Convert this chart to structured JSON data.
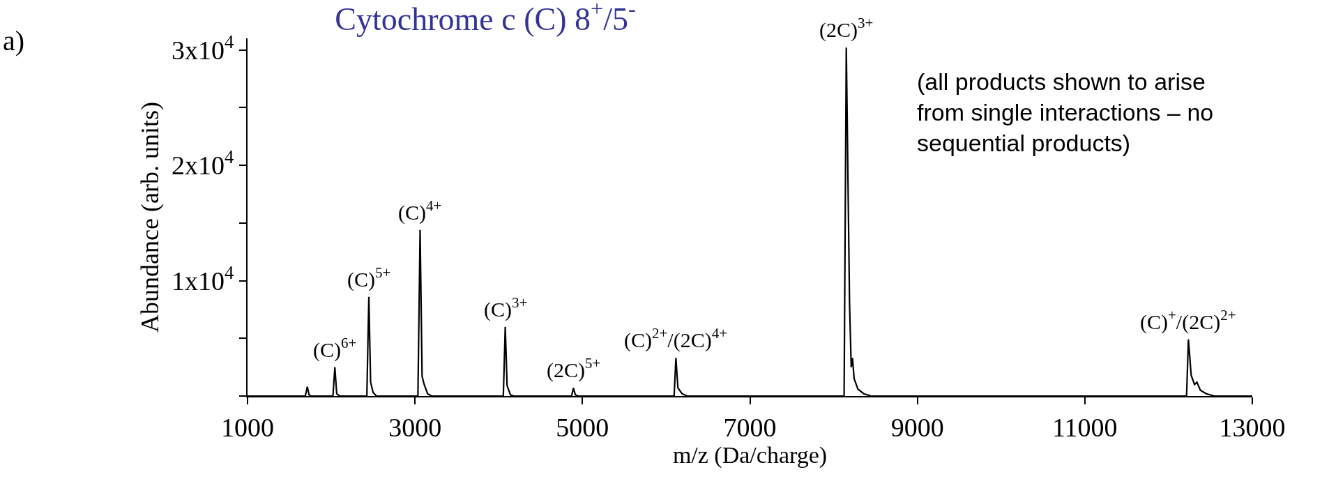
{
  "chart_data": {
    "type": "line",
    "title": "Cytochrome c (C) 8$^{+}$/5$^{-}$",
    "xlabel": "m/z (Da/charge)",
    "ylabel": "Abundance (arb. units)",
    "x": [
      1000,
      1690,
      1714,
      1735,
      1760,
      2020,
      2043,
      2065,
      2100,
      2425,
      2449,
      2470,
      2500,
      2540,
      3035,
      3061,
      3085,
      3110,
      3150,
      3200,
      4055,
      4078,
      4100,
      4140,
      4180,
      4870,
      4892,
      4915,
      4950,
      6095,
      6116,
      6140,
      6190,
      6250,
      8125,
      8151,
      8190,
      8210,
      8225,
      8245,
      8290,
      8360,
      8450,
      12215,
      12237,
      12270,
      12310,
      12338,
      12380,
      12450,
      12550,
      13000
    ],
    "series": [
      {
        "color": "#000000",
        "values": [
          0,
          0,
          800,
          100,
          0,
          0,
          2500,
          200,
          0,
          0,
          8600,
          1200,
          300,
          0,
          0,
          14400,
          1700,
          1000,
          200,
          0,
          0,
          6000,
          900,
          100,
          0,
          0,
          700,
          100,
          0,
          0,
          3300,
          700,
          200,
          0,
          0,
          30200,
          8000,
          2500,
          3300,
          1500,
          600,
          200,
          0,
          0,
          4900,
          1800,
          1000,
          1200,
          500,
          200,
          0,
          0
        ]
      }
    ],
    "xlim": [
      1000,
      13000
    ],
    "xticks": [
      1000,
      3000,
      5000,
      7000,
      9000,
      11000,
      13000
    ],
    "ylim": [
      0,
      31000
    ],
    "yticks": [
      {
        "value": 0,
        "label": null
      },
      {
        "value": 5000,
        "label": null
      },
      {
        "value": 10000,
        "label": "1x10$^{4}$"
      },
      {
        "value": 15000,
        "label": null
      },
      {
        "value": 20000,
        "label": "2x10$^{4}$"
      },
      {
        "value": 25000,
        "label": null
      },
      {
        "value": 30000,
        "label": "3x10$^{4}$"
      }
    ],
    "marker": "none",
    "line_style": "solid",
    "annotations": [
      "a)",
      "(all products shown to arise from single interactions – no sequential products)",
      {
        "text": "(C)$^{6+}$",
        "x": 2043,
        "y": 2500
      },
      {
        "text": "(C)$^{5+}$",
        "x": 2449,
        "y": 8600
      },
      {
        "text": "(C)$^{4+}$",
        "x": 3061,
        "y": 14400
      },
      {
        "text": "(C)$^{3+}$",
        "x": 4078,
        "y": 6000
      },
      {
        "text": "(2C)$^{5+}$",
        "x": 4892,
        "y": 700
      },
      {
        "text": "(C)$^{2+}$/(2C)$^{4+}$",
        "x": 6116,
        "y": 3300
      },
      {
        "text": "(2C)$^{3+}$",
        "x": 8151,
        "y": 30200
      },
      {
        "text": "(C)$^{+}$/(2C)$^{2+}$",
        "x": 12237,
        "y": 4900
      }
    ]
  }
}
